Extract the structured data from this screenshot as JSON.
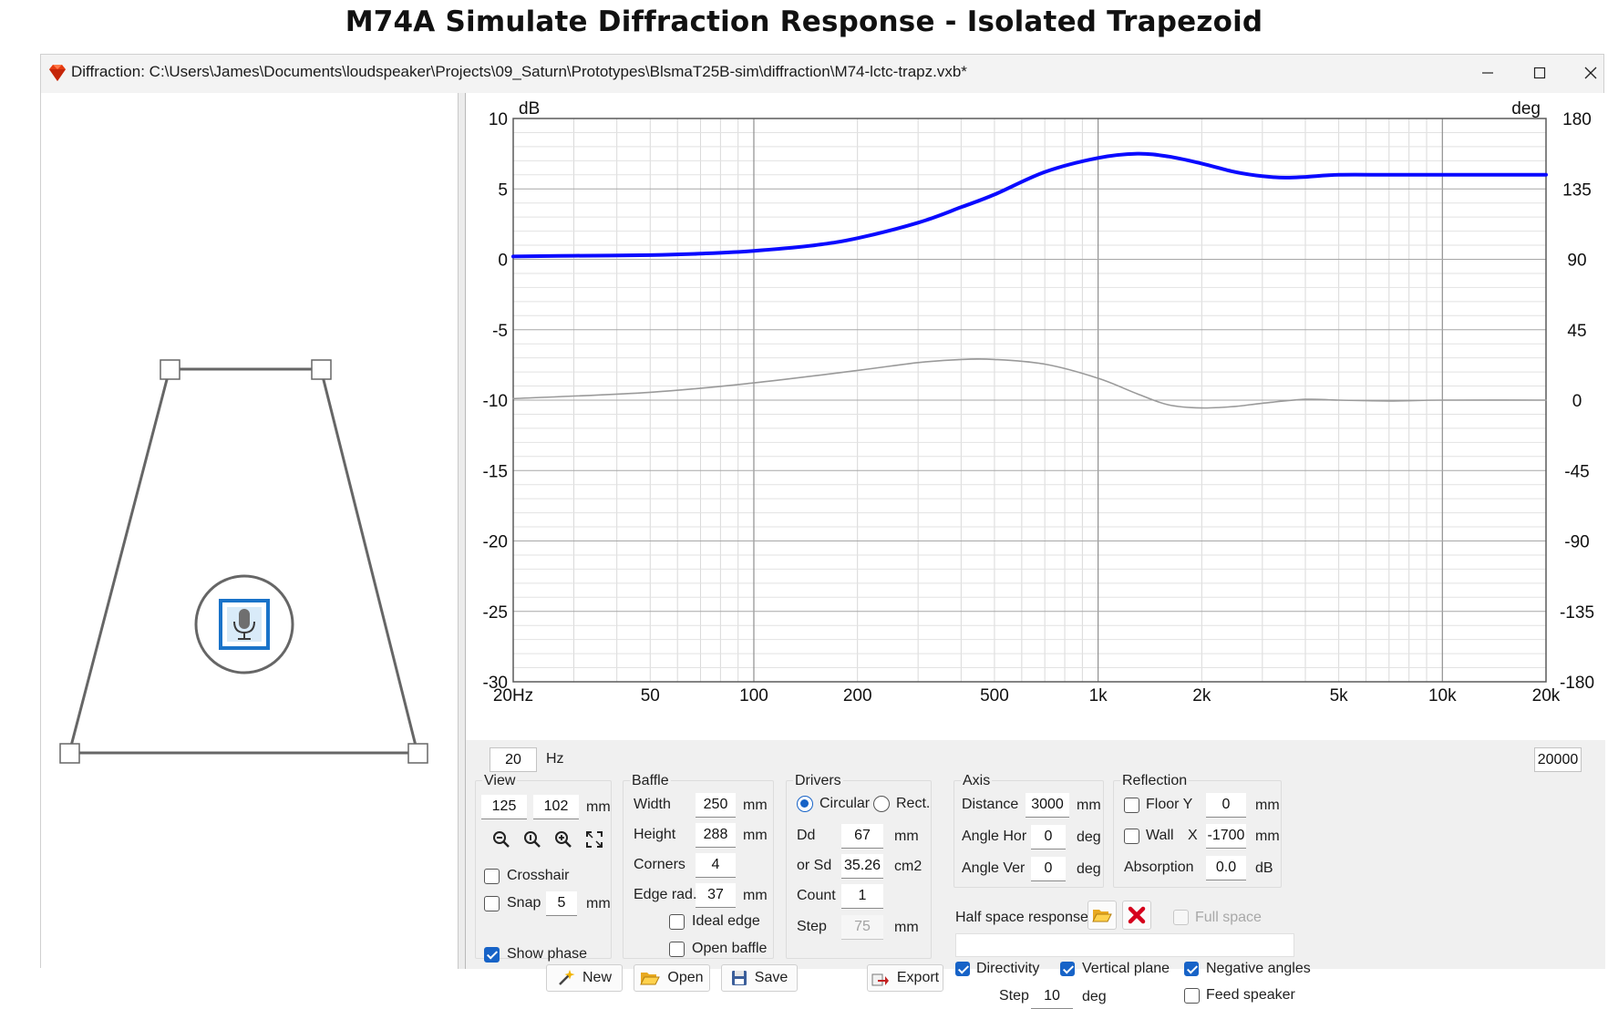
{
  "page": {
    "heading": "M74A Simulate Diffraction Response - Isolated Trapezoid"
  },
  "window": {
    "title": "Diffraction: C:\\Users\\James\\Documents\\loudspeaker\\Projects\\09_Saturn\\Prototypes\\BlsmaT25B-sim\\diffraction\\M74-lctc-trapz.vxb*",
    "icon": "ruby-diamond-icon",
    "controls": {
      "minimize": "minimize-icon",
      "maximize": "maximize-icon",
      "close": "close-icon"
    }
  },
  "colors": {
    "magnitude": "#0a0aff",
    "phase": "#9a9a9a",
    "accent": "#1763c7",
    "delete": "#d6001c"
  },
  "chart_data": {
    "type": "line",
    "title": "",
    "xlabel": "",
    "ylabel": "dB",
    "y2label": "deg",
    "x_scale": "log",
    "xlim": [
      20,
      20000
    ],
    "ylim": [
      -30,
      10
    ],
    "y2lim": [
      -180,
      180
    ],
    "x_ticks": [
      20,
      50,
      100,
      200,
      500,
      1000,
      2000,
      5000,
      10000,
      20000
    ],
    "x_tick_labels": [
      "20Hz",
      "50",
      "100",
      "200",
      "500",
      "1k",
      "2k",
      "5k",
      "10k",
      "20k"
    ],
    "y_ticks": [
      10,
      5,
      0,
      -5,
      -10,
      -15,
      -20,
      -25,
      -30
    ],
    "y_tick_labels": [
      "10",
      "5",
      "0",
      "-5",
      "-10",
      "-15",
      "-20",
      "-25",
      "-30"
    ],
    "y2_ticks": [
      180,
      135,
      90,
      45,
      0,
      -45,
      -90,
      -135,
      -180
    ],
    "y2_tick_labels": [
      "180",
      "135",
      "90",
      "45",
      "0",
      "-45",
      "-90",
      "-135",
      "-180"
    ],
    "grid": true,
    "series": [
      {
        "axis": "left",
        "color": "#0a0aff",
        "x": [
          20,
          30,
          50,
          70,
          100,
          150,
          200,
          300,
          400,
          500,
          700,
          1000,
          1300,
          1600,
          2000,
          2500,
          3000,
          3500,
          4000,
          5000,
          7000,
          10000,
          15000,
          20000
        ],
        "y": [
          0.2,
          0.25,
          0.3,
          0.4,
          0.6,
          1.0,
          1.5,
          2.6,
          3.7,
          4.6,
          6.2,
          7.2,
          7.5,
          7.3,
          6.8,
          6.2,
          5.9,
          5.8,
          5.85,
          6.0,
          6.0,
          6.0,
          6.0,
          6.0
        ]
      },
      {
        "axis": "right",
        "color": "#9a9a9a",
        "x": [
          20,
          50,
          100,
          200,
          300,
          400,
          500,
          700,
          1000,
          1300,
          1600,
          2000,
          2500,
          3000,
          4000,
          5000,
          7000,
          10000,
          20000
        ],
        "y": [
          1,
          5,
          11,
          19,
          24,
          26,
          26,
          23,
          14,
          4,
          -3,
          -5,
          -4,
          -2,
          0.5,
          0,
          -0.5,
          0,
          0
        ]
      }
    ]
  },
  "freq_range": {
    "min": "20",
    "max": "20000",
    "unit": "Hz"
  },
  "view": {
    "title": "View",
    "x": "125",
    "y": "102",
    "unit": "mm",
    "tools": [
      "zoom-out-icon",
      "zoom-fit-icon",
      "zoom-in-icon",
      "fullscreen-icon"
    ],
    "crosshair": "Crosshair",
    "crosshair_checked": false,
    "snap": "Snap",
    "snap_checked": false,
    "snap_value": "5",
    "snap_unit": "mm",
    "show_phase": "Show phase",
    "show_phase_checked": true
  },
  "baffle": {
    "title": "Baffle",
    "width_label": "Width",
    "width": "250",
    "height_label": "Height",
    "height": "288",
    "corners_label": "Corners",
    "corners": "4",
    "edge_label": "Edge rad.",
    "edge": "37",
    "unit": "mm",
    "ideal_edge": "Ideal edge",
    "ideal_edge_checked": false,
    "open_baffle": "Open baffle",
    "open_baffle_checked": false
  },
  "drivers": {
    "title": "Drivers",
    "circular": "Circular",
    "rect": "Rect.",
    "selected": "circular",
    "dd_label": "Dd",
    "dd": "67",
    "dd_unit": "mm",
    "sd_label": "or Sd",
    "sd": "35.26",
    "sd_unit": "cm2",
    "count_label": "Count",
    "count": "1",
    "step_label": "Step",
    "step": "75",
    "step_unit": "mm"
  },
  "axis": {
    "title": "Axis",
    "distance_label": "Distance",
    "distance": "3000",
    "distance_unit": "mm",
    "hor_label": "Angle Hor",
    "hor": "0",
    "hor_unit": "deg",
    "ver_label": "Angle Ver",
    "ver": "0",
    "ver_unit": "deg"
  },
  "reflection": {
    "title": "Reflection",
    "floor_label": "Floor Y",
    "floor_checked": false,
    "floor": "0",
    "floor_unit": "mm",
    "wall_label": "Wall",
    "wall_axis": "X",
    "wall_checked": false,
    "wall": "-1700",
    "wall_unit": "mm",
    "absorption_label": "Absorption",
    "absorption": "0.0",
    "absorption_unit": "dB"
  },
  "half_space": {
    "label": "Half space response",
    "open_icon": "folder-open-icon",
    "delete_icon": "delete-x-icon",
    "full_space": "Full space",
    "full_space_checked": false,
    "file": ""
  },
  "directivity": {
    "directivity": "Directivity",
    "directivity_checked": true,
    "vertical": "Vertical plane",
    "vertical_checked": true,
    "negative": "Negative angles",
    "negative_checked": true,
    "step_label": "Step",
    "step": "10",
    "step_unit": "deg",
    "feed": "Feed speaker",
    "feed_checked": false
  },
  "buttons": {
    "new": "New",
    "new_icon": "new-wand-icon",
    "open": "Open",
    "open_icon": "folder-open-icon",
    "save": "Save",
    "save_icon": "floppy-disk-icon",
    "export": "Export",
    "export_icon": "export-arrow-icon"
  },
  "baffle_drawing": {
    "driver_icon": "microphone-icon"
  }
}
